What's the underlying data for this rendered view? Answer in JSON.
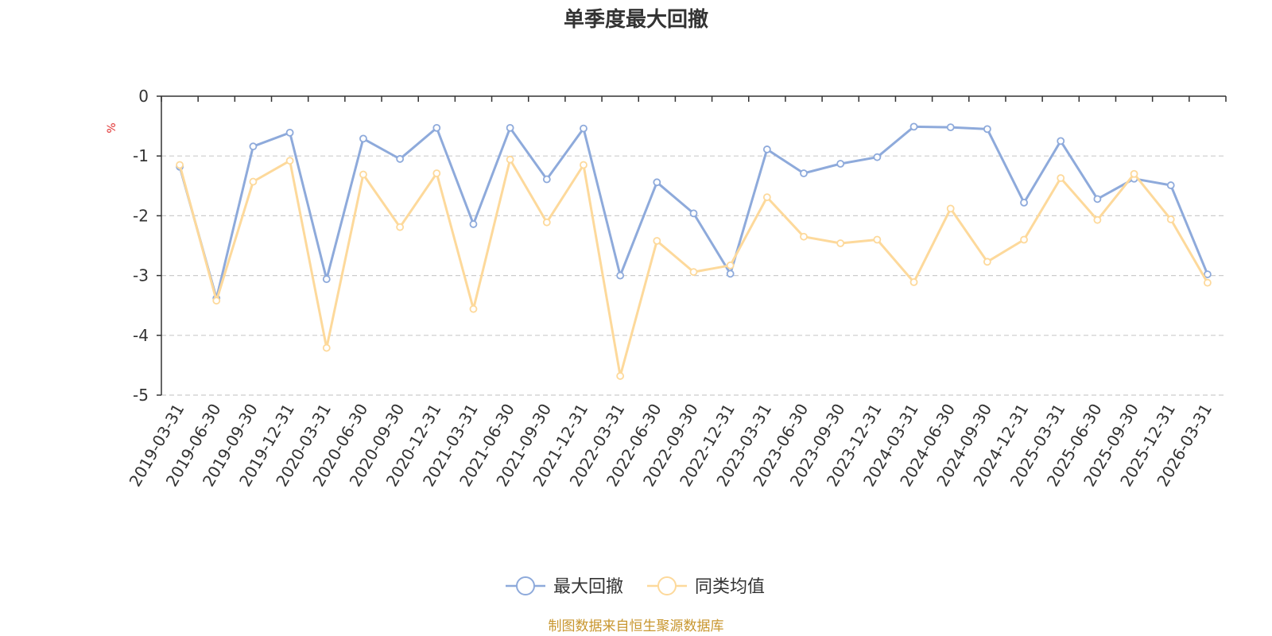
{
  "chart_data": {
    "type": "line",
    "title": "单季度最大回撤",
    "ylabel": "%",
    "ylim": [
      -5,
      0
    ],
    "yticks": [
      0,
      -1,
      -2,
      -3,
      -4,
      -5
    ],
    "grid": true,
    "legend_position": "bottom-center",
    "x": [
      "2019-03-31",
      "2019-06-30",
      "2019-09-30",
      "2019-12-31",
      "2020-03-31",
      "2020-06-30",
      "2020-09-30",
      "2020-12-31",
      "2021-03-31",
      "2021-06-30",
      "2021-09-30",
      "2021-12-31",
      "2022-03-31",
      "2022-06-30",
      "2022-09-30",
      "2022-12-31",
      "2023-03-31",
      "2023-06-30",
      "2023-09-30",
      "2023-12-31",
      "2024-03-31",
      "2024-06-30",
      "2024-09-30",
      "2024-12-31",
      "2025-03-31",
      "2025-06-30",
      "2025-09-30",
      "2025-12-31",
      "2026-03-31"
    ],
    "series": [
      {
        "name": "最大回撤",
        "color": "#8eaadb",
        "values": [
          -1.18,
          -3.38,
          -0.84,
          -0.61,
          -3.06,
          -0.71,
          -1.05,
          -0.53,
          -2.14,
          -0.53,
          -1.39,
          -0.54,
          -3.0,
          -1.44,
          -1.96,
          -2.97,
          -0.89,
          -1.29,
          -1.13,
          -1.02,
          -0.51,
          -0.52,
          -0.55,
          -1.78,
          -0.75,
          -1.72,
          -1.38,
          -1.49,
          -2.98
        ]
      },
      {
        "name": "同类均值",
        "color": "#fdd99b",
        "values": [
          -1.15,
          -3.42,
          -1.43,
          -1.08,
          -4.21,
          -1.31,
          -2.19,
          -1.29,
          -3.56,
          -1.06,
          -2.11,
          -1.15,
          -4.68,
          -2.42,
          -2.94,
          -2.83,
          -1.69,
          -2.35,
          -2.46,
          -2.4,
          -3.11,
          -1.88,
          -2.77,
          -2.4,
          -1.37,
          -2.07,
          -1.3,
          -2.06,
          -3.12
        ]
      }
    ]
  },
  "source_text": "制图数据来自恒生聚源数据库",
  "colors": {
    "axis": "#333333",
    "grid": "#cccccc",
    "unit": "#e03030",
    "source": "#c8962e"
  }
}
